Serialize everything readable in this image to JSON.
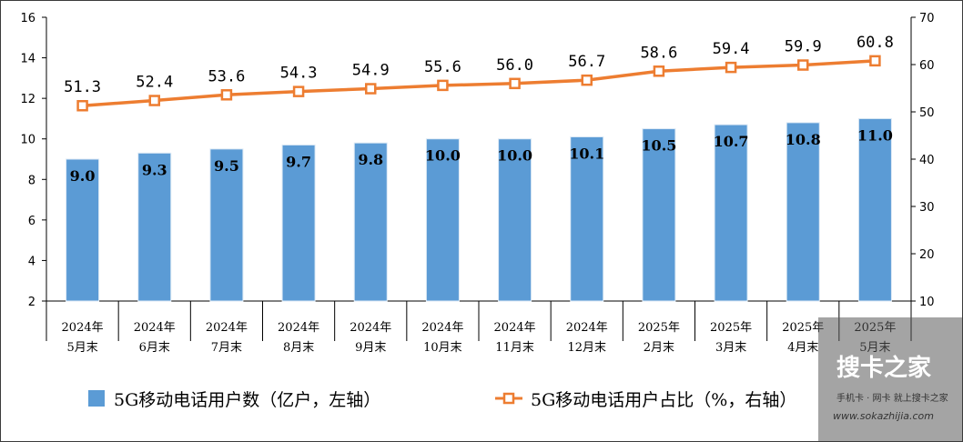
{
  "chart_data": {
    "type": "bar+line",
    "categories": [
      [
        "2024年",
        "5月末"
      ],
      [
        "2024年",
        "6月末"
      ],
      [
        "2024年",
        "7月末"
      ],
      [
        "2024年",
        "8月末"
      ],
      [
        "2024年",
        "9月末"
      ],
      [
        "2024年",
        "10月末"
      ],
      [
        "2024年",
        "11月末"
      ],
      [
        "2024年",
        "12月末"
      ],
      [
        "2025年",
        "2月末"
      ],
      [
        "2025年",
        "3月末"
      ],
      [
        "2025年",
        "4月末"
      ],
      [
        "2025年",
        "5月末"
      ]
    ],
    "series": [
      {
        "name": "5G移动电话用户数（亿户，左轴）",
        "type": "bar",
        "axis": "left",
        "color": "#5b9bd5",
        "values": [
          9.0,
          9.3,
          9.5,
          9.7,
          9.8,
          10.0,
          10.0,
          10.1,
          10.5,
          10.7,
          10.8,
          11.0
        ],
        "labels": [
          "9.0",
          "9.3",
          "9.5",
          "9.7",
          "9.8",
          "10.0",
          "10.0",
          "10.1",
          "10.5",
          "10.7",
          "10.8",
          "11.0"
        ]
      },
      {
        "name": "5G移动电话用户占比（%，右轴）",
        "type": "line",
        "axis": "right",
        "color": "#ed7d31",
        "values": [
          51.3,
          52.4,
          53.6,
          54.3,
          54.9,
          55.6,
          56.0,
          56.7,
          58.6,
          59.4,
          59.9,
          60.8
        ],
        "labels": [
          "51.3",
          "52.4",
          "53.6",
          "54.3",
          "54.9",
          "55.6",
          "56.0",
          "56.7",
          "58.6",
          "59.4",
          "59.9",
          "60.8"
        ]
      }
    ],
    "left_axis": {
      "min": 2,
      "max": 16,
      "ticks": [
        "2",
        "4",
        "6",
        "8",
        "10",
        "12",
        "14",
        "16"
      ]
    },
    "right_axis": {
      "min": 10,
      "max": 70,
      "ticks": [
        "10",
        "20",
        "30",
        "40",
        "50",
        "60",
        "70"
      ]
    },
    "legend_position": "bottom",
    "grid": false
  },
  "watermark": {
    "title": "搜卡之家",
    "subtitle": "手机卡 · 网卡 就上搜卡之家",
    "url": "www.sokazhijia.com"
  }
}
